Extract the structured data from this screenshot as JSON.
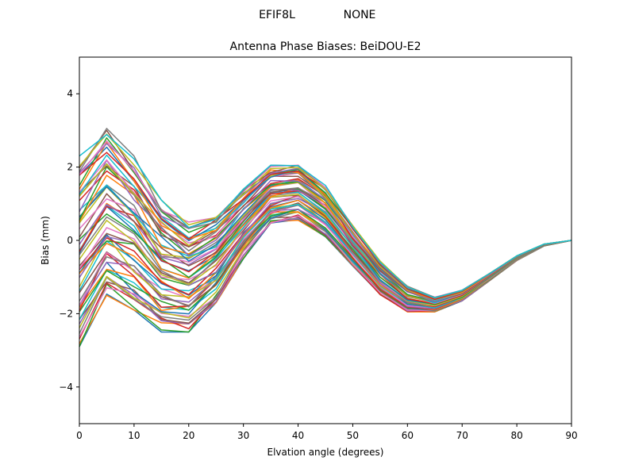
{
  "chart_data": {
    "type": "line",
    "suptitle_left": "EFIF8L",
    "suptitle_right": "NONE",
    "title": "Antenna Phase Biases: BeiDOU-E2",
    "xlabel": "Elvation angle (degrees)",
    "ylabel": "Bias (mm)",
    "xlim": [
      0,
      90
    ],
    "ylim": [
      -5,
      5
    ],
    "xticks": [
      0,
      10,
      20,
      30,
      40,
      50,
      60,
      70,
      80,
      90
    ],
    "yticks": [
      -4,
      -2,
      0,
      2,
      4
    ],
    "ytick_labels": [
      "−4",
      "−2",
      "0",
      "2",
      "4"
    ],
    "grid": false,
    "x": [
      0,
      5,
      10,
      15,
      20,
      25,
      30,
      35,
      40,
      45,
      50,
      55,
      60,
      65,
      70,
      75,
      80,
      85,
      90
    ],
    "series_count": 60,
    "envelope_low": [
      -2.9,
      -1.5,
      -1.9,
      -2.5,
      -2.5,
      -1.7,
      -0.5,
      0.4,
      0.55,
      0.1,
      -0.7,
      -1.5,
      -1.95,
      -1.95,
      -1.65,
      -1.1,
      -0.55,
      -0.15,
      0.0
    ],
    "envelope_high": [
      2.3,
      3.1,
      2.3,
      1.1,
      0.5,
      0.7,
      1.4,
      2.05,
      2.1,
      1.5,
      0.4,
      -0.55,
      -1.25,
      -1.55,
      -1.35,
      -0.9,
      -0.42,
      -0.1,
      0.0
    ],
    "colors": [
      "#1f77b4",
      "#ff7f0e",
      "#2ca02c",
      "#d62728",
      "#9467bd",
      "#8c564b",
      "#e377c2",
      "#7f7f7f",
      "#bcbd22",
      "#17becf"
    ]
  }
}
